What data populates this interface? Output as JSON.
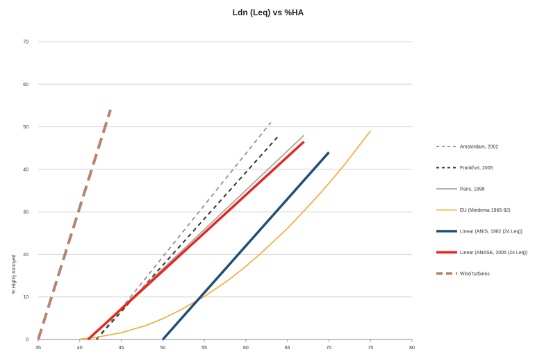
{
  "chart_data": {
    "type": "line",
    "title": "Ldn (Leq) vs %HA",
    "xlabel": "",
    "ylabel": "% Highly Annoyed",
    "xlim": [
      35,
      80
    ],
    "ylim": [
      0,
      70
    ],
    "xticks": [
      35,
      40,
      45,
      50,
      55,
      60,
      65,
      70,
      75,
      80
    ],
    "yticks": [
      0,
      10,
      20,
      30,
      40,
      50,
      60,
      70
    ],
    "grid": "horizontal",
    "legend_position": "right",
    "series": [
      {
        "name": "Amsterdam, 2002",
        "color": "#9a9a9a",
        "dash": "dashed",
        "x": [
          42,
          63
        ],
        "y": [
          0,
          51
        ]
      },
      {
        "name": "Frankfurt, 2005",
        "color": "#333333",
        "dash": "dashed",
        "x": [
          42,
          64
        ],
        "y": [
          0,
          48
        ]
      },
      {
        "name": "Paris, 1998",
        "color": "#a6a6a6",
        "dash": "solid",
        "x": [
          41,
          67
        ],
        "y": [
          0,
          48
        ]
      },
      {
        "name": "EU (Miedema 1965-92)",
        "color": "#f5b041",
        "dash": "solid",
        "x": [
          40,
          42,
          45,
          48,
          50,
          52,
          55,
          58,
          60,
          62,
          65,
          68,
          70,
          72,
          75
        ],
        "y": [
          0.1,
          0.5,
          1.6,
          3.3,
          4.9,
          6.8,
          10.1,
          14.1,
          17.2,
          20.6,
          26.1,
          32.3,
          36.7,
          41.4,
          49.0
        ]
      },
      {
        "name": "Linear (ANIS, 1982 (24 Leq))",
        "color": "#1f4e79",
        "dash": "solid",
        "x": [
          50,
          70
        ],
        "y": [
          0,
          44
        ]
      },
      {
        "name": "Linear (ANASE, 2005 (24 Leq))",
        "color": "#e8261c",
        "dash": "solid",
        "x": [
          41,
          67
        ],
        "y": [
          0,
          46.5
        ]
      },
      {
        "name": "Wind turbines",
        "color": "#b5846a",
        "dash": "longdash",
        "x": [
          35,
          43.7
        ],
        "y": [
          0,
          54
        ]
      }
    ]
  }
}
